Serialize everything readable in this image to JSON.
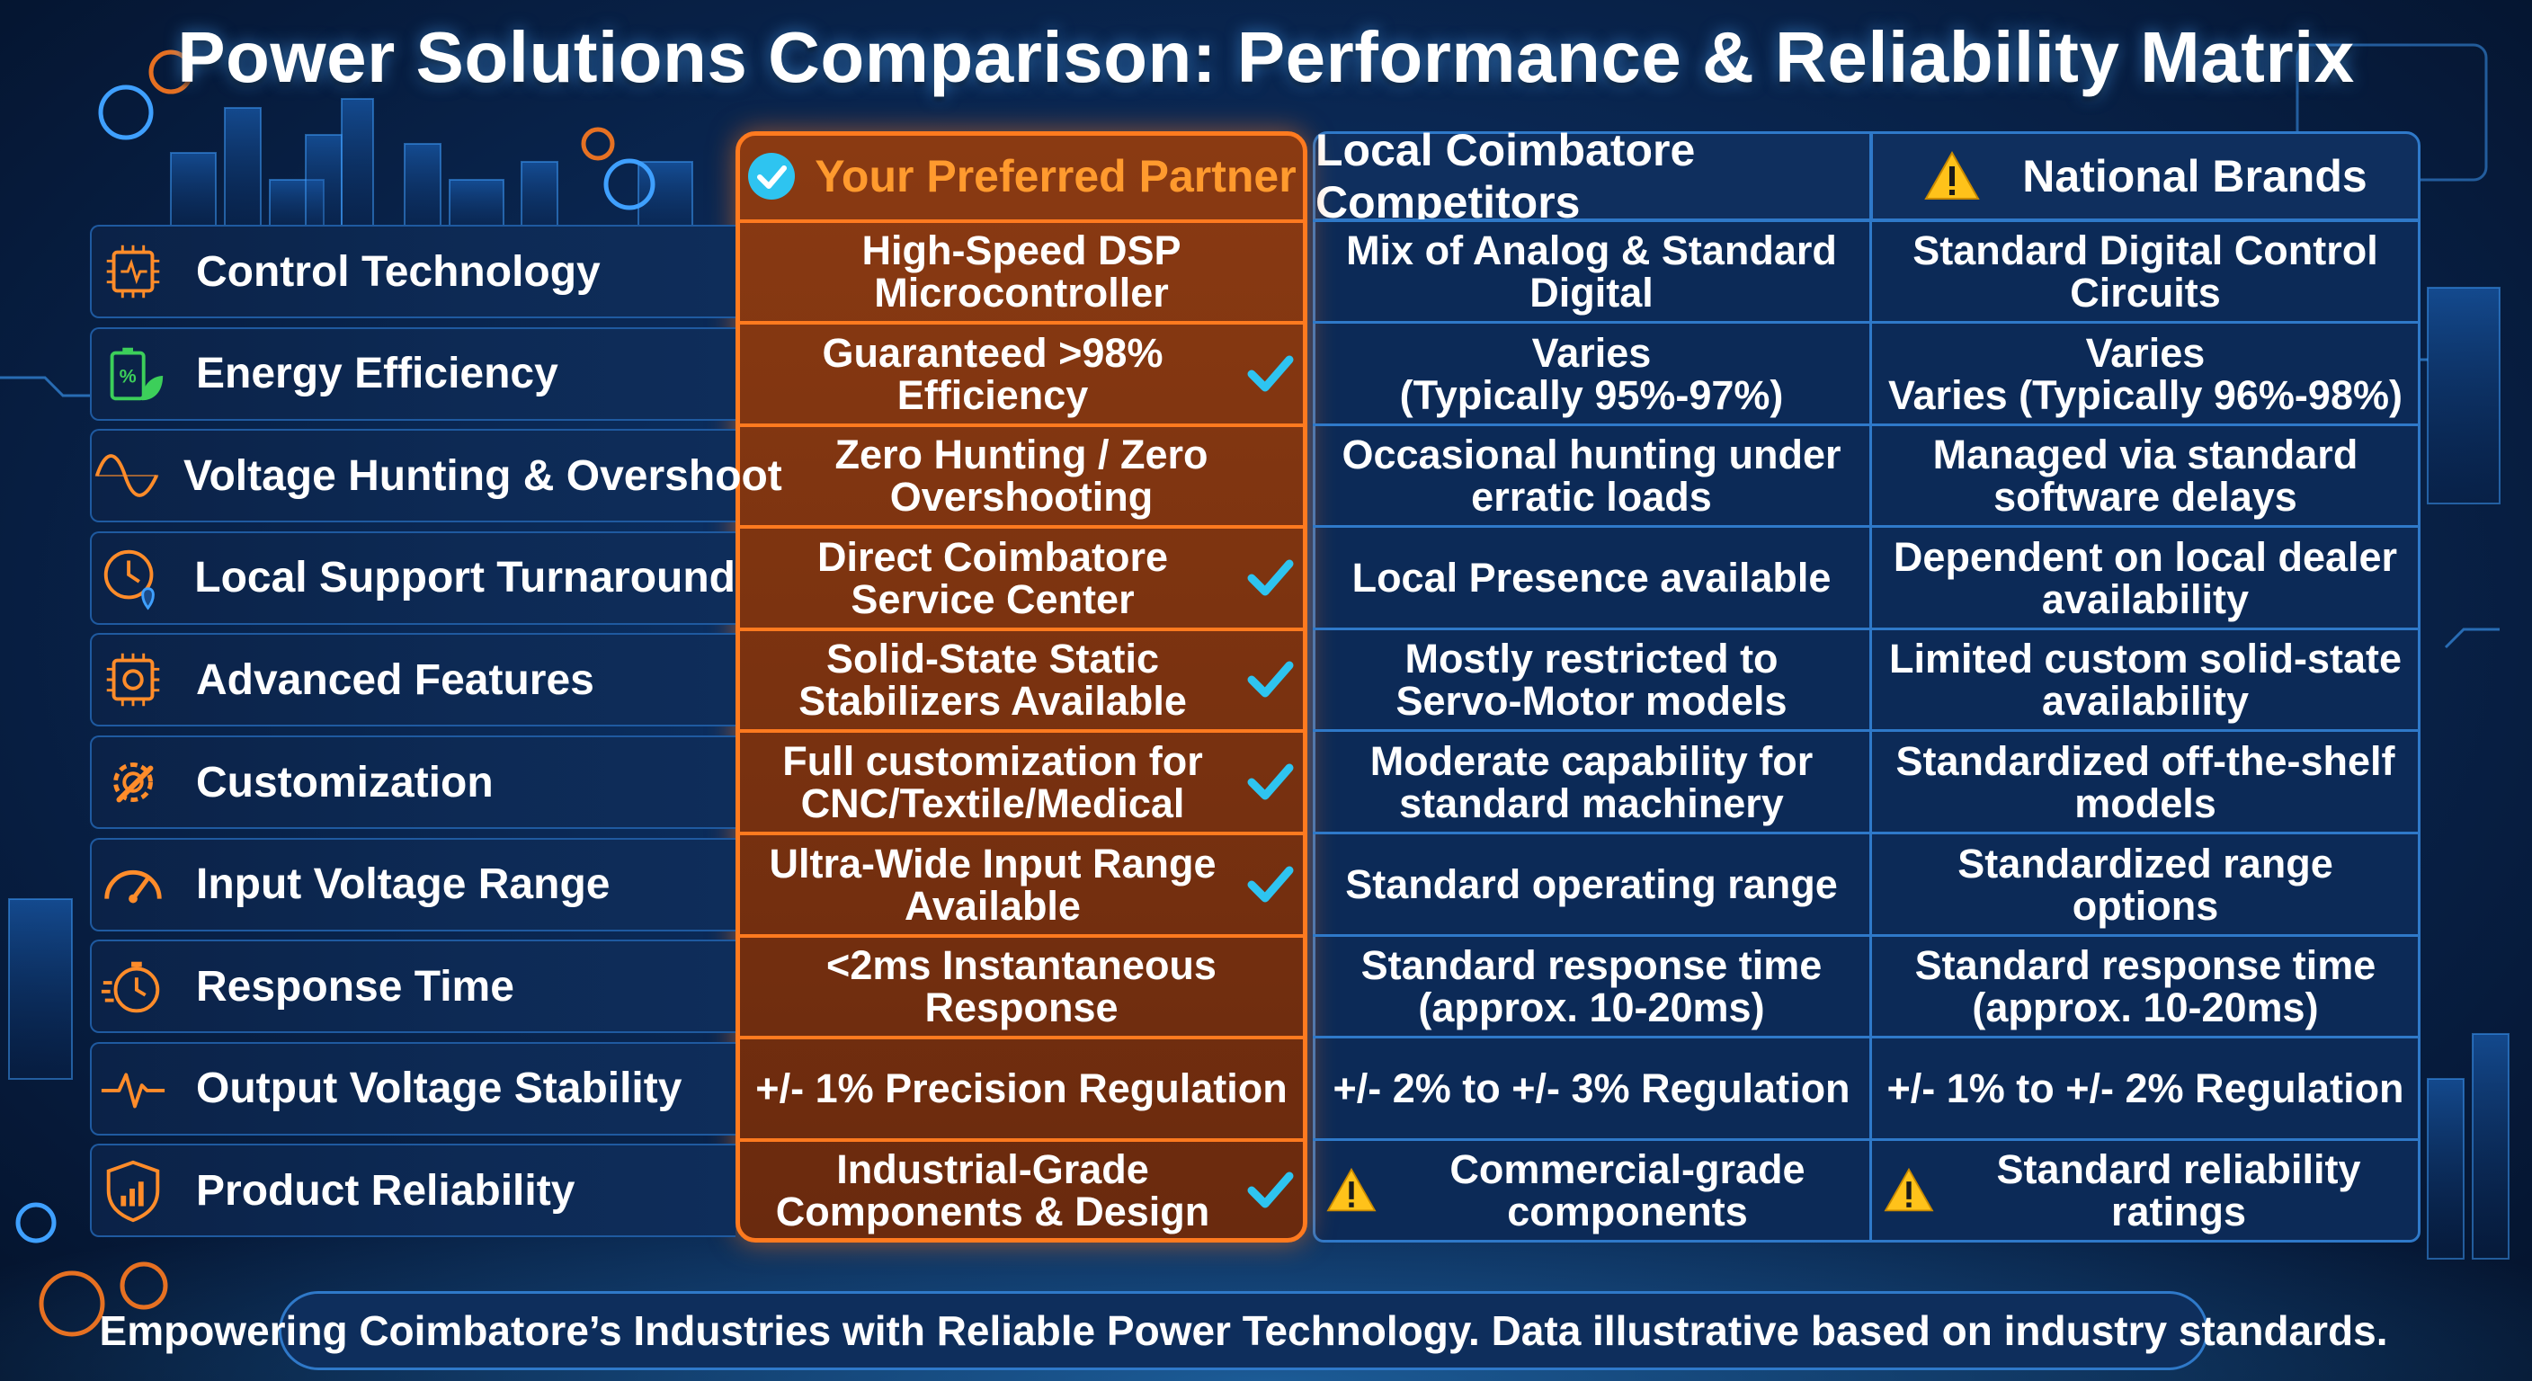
{
  "title": "Power Solutions Comparison: Performance & Reliability Matrix",
  "colors": {
    "accent_orange": "#ff7a1f",
    "check_cyan": "#2ec4f0",
    "warning_yellow": "#ffc21a",
    "border_blue": "#2f79c9"
  },
  "columns": [
    {
      "label": "Your Preferred Partner",
      "icon": "check-circle-icon"
    },
    {
      "label": "Local Coimbatore Competitors",
      "icon": ""
    },
    {
      "label": "National Brands",
      "icon": "warning-icon"
    }
  ],
  "rows": [
    {
      "label": "Control Technology",
      "icon": "chip-icon",
      "partner": "High-Speed DSP Microcontroller",
      "partner_check": false,
      "local": "Mix of Analog & Standard Digital",
      "national": "Standard Digital Control Circuits"
    },
    {
      "label": "Energy Efficiency",
      "icon": "battery-leaf-icon",
      "partner": "Guaranteed >98% Efficiency",
      "partner_check": true,
      "local": "Varies\n(Typically 95%-97%)",
      "national": "Varies\nVaries (Typically 96%-98%)"
    },
    {
      "label": "Voltage Hunting & Overshoot",
      "icon": "sine-wave-icon",
      "partner": "Zero Hunting / Zero Overshooting",
      "partner_check": false,
      "local": "Occasional hunting under\nerratic loads",
      "national": "Managed via standard\nsoftware delays"
    },
    {
      "label": "Local Support Turnaround",
      "icon": "clock-pin-icon",
      "partner": "Direct Coimbatore\nService Center",
      "partner_check": true,
      "local": "Local Presence available",
      "national": "Dependent on local dealer\navailability"
    },
    {
      "label": "Advanced Features",
      "icon": "chip-gear-icon",
      "partner": "Solid-State Static\nStabilizers Available",
      "partner_check": true,
      "local": "Mostly restricted to\nServo-Motor models",
      "national": "Limited custom solid-state\navailability"
    },
    {
      "label": "Customization",
      "icon": "gear-wrench-icon",
      "partner": "Full customization for\nCNC/Textile/Medical",
      "partner_check": true,
      "local": "Moderate capability for\nstandard machinery",
      "national": "Standardized off-the-shelf\nmodels"
    },
    {
      "label": "Input Voltage Range",
      "icon": "gauge-icon",
      "partner": "Ultra-Wide Input Range\nAvailable",
      "partner_check": true,
      "local": "Standard operating range",
      "national": "Standardized range options"
    },
    {
      "label": "Response Time",
      "icon": "stopwatch-icon",
      "partner": "<2ms Instantaneous Response",
      "partner_check": false,
      "local": "Standard response time\n(approx. 10-20ms)",
      "national": "Standard response time\n(approx. 10-20ms)"
    },
    {
      "label": "Output Voltage Stability",
      "icon": "pulse-icon",
      "partner": "+/- 1% Precision Regulation",
      "partner_check": false,
      "local": "+/- 2% to +/- 3% Regulation",
      "national": "+/- 1% to +/- 2% Regulation"
    },
    {
      "label": "Product Reliability",
      "icon": "shield-chart-icon",
      "partner": "Industrial-Grade\nComponents & Design",
      "partner_check": true,
      "local": "Commercial-grade\ncomponents",
      "local_warning": true,
      "national": "Standard reliability ratings",
      "national_warning": true
    }
  ],
  "footer": "Empowering Coimbatore’s Industries with Reliable Power Technology. Data illustrative based on industry standards."
}
